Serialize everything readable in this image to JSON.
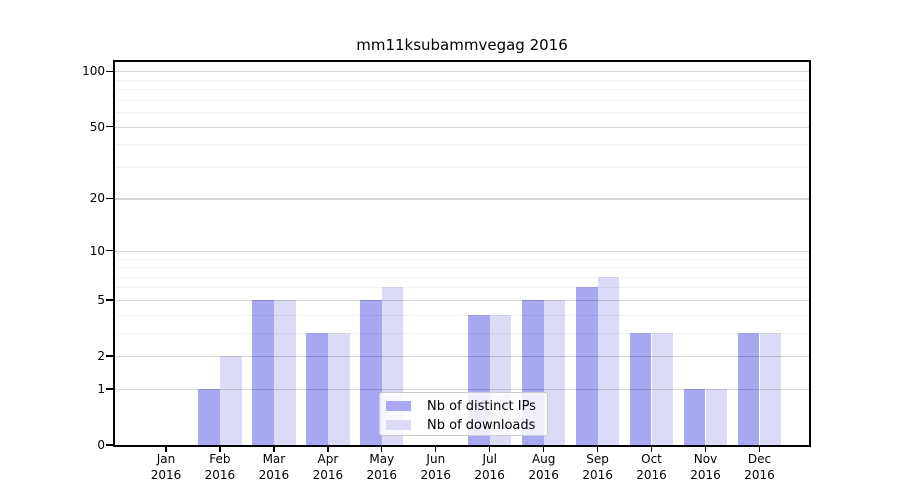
{
  "chart_data": {
    "type": "bar",
    "title": "mm11ksubammvegag 2016",
    "categories": [
      "Jan",
      "Feb",
      "Mar",
      "Apr",
      "May",
      "Jun",
      "Jul",
      "Aug",
      "Sep",
      "Oct",
      "Nov",
      "Dec"
    ],
    "x_tick_year": "2016",
    "series": [
      {
        "name": "Nb of distinct IPs",
        "color": "#a8a8f2",
        "values": [
          0,
          1,
          5,
          3,
          5,
          0,
          4,
          5,
          6,
          3,
          1,
          3
        ]
      },
      {
        "name": "Nb of downloads",
        "color": "#dbdbf8",
        "values": [
          0,
          2,
          5,
          3,
          6,
          0,
          4,
          5,
          7,
          3,
          1,
          3
        ]
      }
    ],
    "y_scale": "log10(1+value)",
    "y_ticks": [
      0,
      1,
      2,
      5,
      10,
      20,
      50,
      100
    ],
    "y_minor_gridlines": [
      3,
      4,
      6,
      7,
      8,
      9,
      30,
      40,
      60,
      70,
      80,
      90
    ],
    "ylim": [
      0,
      115
    ],
    "grid": "on",
    "legend_position": "lower center",
    "background_color": "#ffffff"
  }
}
